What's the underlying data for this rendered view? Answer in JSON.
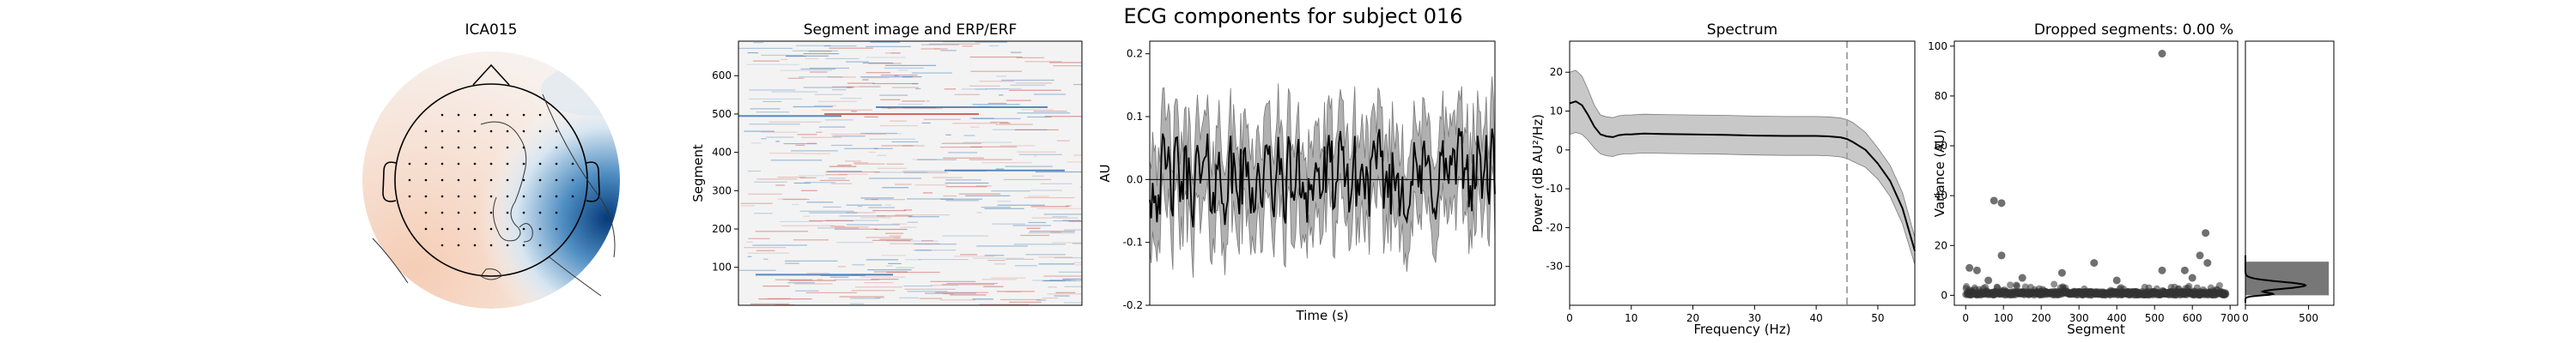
{
  "suptitle": "ECG components for subject 016",
  "colors": {
    "positive": "#c0392b",
    "negative": "#2166ac",
    "band": "#b0b0b0",
    "line": "#000000",
    "cutoff": "#a0a0a0",
    "scatter": "#333333"
  },
  "chart_data": [
    {
      "type": "heatmap",
      "subtype": "topomap",
      "title": "ICA015",
      "note": "scalp map of component weights, strong negative lobe on right temporal side"
    },
    {
      "type": "heatmap",
      "title": "Segment image and ERP/ERF",
      "xlabel": "",
      "ylabel": "Segment",
      "y_ticks": [
        100,
        200,
        300,
        400,
        500,
        600
      ],
      "ylim": [
        1,
        690
      ],
      "grid": false
    },
    {
      "type": "line",
      "title": "",
      "xlabel": "Time (s)",
      "ylabel": "AU",
      "y_ticks": [
        -0.2,
        -0.1,
        0.0,
        0.1,
        0.2
      ],
      "ylim": [
        -0.2,
        0.22
      ],
      "mean_level": 0.0,
      "band_halfwidth": 0.07,
      "grid": false
    },
    {
      "type": "area",
      "title": "Spectrum",
      "xlabel": "Frequency (Hz)",
      "ylabel": "Power (dB AU²/Hz)",
      "x_ticks": [
        0,
        10,
        20,
        30,
        40,
        50
      ],
      "y_ticks": [
        -30,
        -20,
        -10,
        0,
        10,
        20
      ],
      "xlim": [
        0,
        56
      ],
      "ylim": [
        -40,
        28
      ],
      "cutoff": 45,
      "x": [
        0,
        1,
        2,
        3,
        4,
        5,
        6,
        7,
        8,
        9,
        10,
        12,
        15,
        20,
        25,
        30,
        35,
        40,
        42,
        44,
        45,
        46,
        48,
        50,
        52,
        54,
        56
      ],
      "mean": [
        12,
        12.5,
        11.5,
        9,
        6,
        4,
        3.5,
        3.3,
        3.8,
        4,
        4,
        4.2,
        4.1,
        4,
        3.9,
        3.7,
        3.6,
        3.6,
        3.5,
        3.2,
        2.8,
        2,
        0,
        -3.5,
        -8,
        -15,
        -26
      ],
      "band_halfwidth": [
        8,
        8,
        7.5,
        6.5,
        5.5,
        5,
        5,
        5,
        5,
        5,
        5,
        5,
        5,
        5,
        5,
        5,
        5,
        5,
        5,
        5,
        5,
        5,
        4.5,
        4,
        4,
        4,
        3.5
      ],
      "grid": false
    },
    {
      "type": "scatter",
      "title": "Dropped segments: 0.00 %",
      "xlabel": "Segment",
      "ylabel": "Variance (AU)",
      "x_ticks": [
        0,
        100,
        200,
        300,
        400,
        500,
        600,
        700
      ],
      "y_ticks": [
        0,
        20,
        40,
        60,
        80,
        100
      ],
      "xlim": [
        -30,
        720
      ],
      "ylim": [
        -4,
        102
      ],
      "outliers": [
        {
          "x": 520,
          "y": 97
        },
        {
          "x": 75,
          "y": 38
        },
        {
          "x": 95,
          "y": 37
        },
        {
          "x": 635,
          "y": 25
        },
        {
          "x": 95,
          "y": 16
        },
        {
          "x": 620,
          "y": 16
        },
        {
          "x": 640,
          "y": 13
        },
        {
          "x": 10,
          "y": 11
        },
        {
          "x": 30,
          "y": 10
        },
        {
          "x": 580,
          "y": 10
        },
        {
          "x": 340,
          "y": 13
        },
        {
          "x": 520,
          "y": 10
        },
        {
          "x": 255,
          "y": 9
        },
        {
          "x": 150,
          "y": 7
        },
        {
          "x": 60,
          "y": 6
        },
        {
          "x": 400,
          "y": 6
        },
        {
          "x": 600,
          "y": 7
        }
      ],
      "baseline_count": 690,
      "baseline_value": 0.8,
      "grid": false
    },
    {
      "type": "histogram",
      "title": "",
      "orientation": "horizontal",
      "x_ticks": [
        0,
        500
      ],
      "xlim": [
        0,
        700
      ],
      "bins": [
        {
          "from": 0,
          "to": 13.5,
          "count": 660
        }
      ],
      "kde_peak": 4,
      "grid": false
    }
  ]
}
